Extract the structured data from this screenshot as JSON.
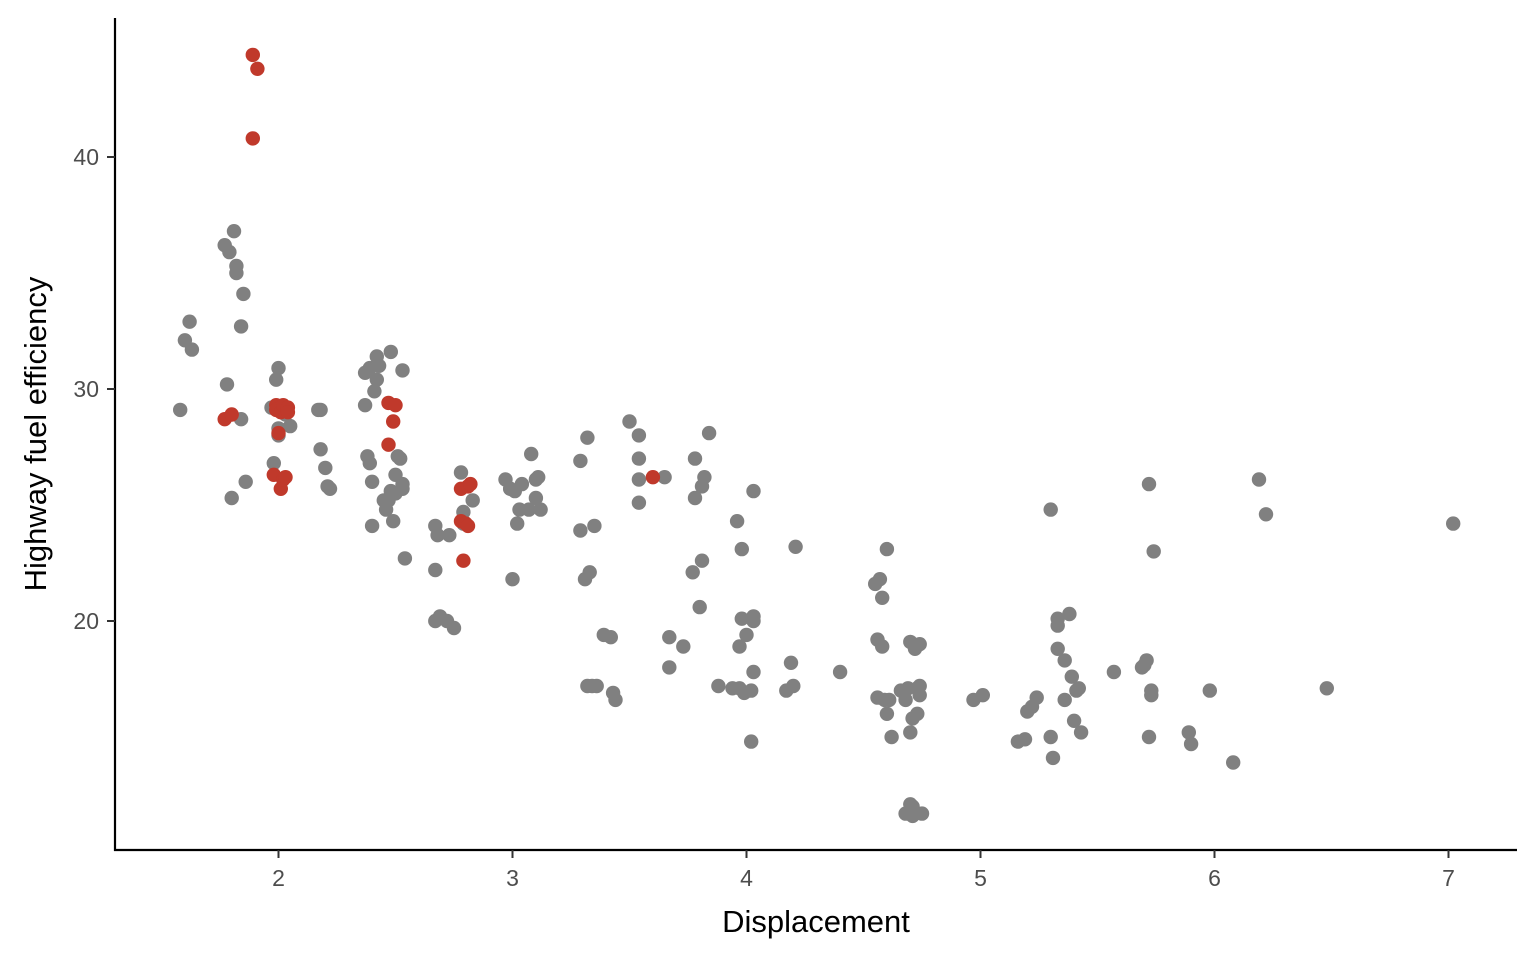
{
  "chart_data": {
    "type": "scatter",
    "title": "",
    "xlabel": "Displacement",
    "ylabel": "Highway fuel efficiency",
    "xlim": [
      1.3,
      7.3
    ],
    "ylim": [
      10,
      46
    ],
    "x_ticks": [
      2,
      3,
      4,
      5,
      6,
      7
    ],
    "y_ticks": [
      20,
      30,
      40
    ],
    "x_tick_labels": [
      "2",
      "3",
      "4",
      "5",
      "6",
      "7"
    ],
    "y_tick_labels": [
      "20",
      "30",
      "40"
    ],
    "grid": false,
    "legend": "none",
    "colors": {
      "default": "#808080",
      "highlight": "#C0392B"
    },
    "series": [
      {
        "color": "#808080",
        "points": [
          [
            1.58,
            29.1
          ],
          [
            1.6,
            32.1
          ],
          [
            1.62,
            32.9
          ],
          [
            1.63,
            31.7
          ],
          [
            1.77,
            36.2
          ],
          [
            1.78,
            30.2
          ],
          [
            1.79,
            35.9
          ],
          [
            1.8,
            25.3
          ],
          [
            1.81,
            36.8
          ],
          [
            1.82,
            35.3
          ],
          [
            1.82,
            35.0
          ],
          [
            1.84,
            32.7
          ],
          [
            1.84,
            28.7
          ],
          [
            1.85,
            34.1
          ],
          [
            1.86,
            26.0
          ],
          [
            1.97,
            29.2
          ],
          [
            1.98,
            26.8
          ],
          [
            1.99,
            30.4
          ],
          [
            2.0,
            28.0
          ],
          [
            2.0,
            30.9
          ],
          [
            2.0,
            28.3
          ],
          [
            2.03,
            28.9
          ],
          [
            2.05,
            28.4
          ],
          [
            2.17,
            29.1
          ],
          [
            2.18,
            29.1
          ],
          [
            2.18,
            27.4
          ],
          [
            2.2,
            26.6
          ],
          [
            2.21,
            25.8
          ],
          [
            2.22,
            25.7
          ],
          [
            2.37,
            29.3
          ],
          [
            2.37,
            30.7
          ],
          [
            2.38,
            27.1
          ],
          [
            2.39,
            26.8
          ],
          [
            2.39,
            30.9
          ],
          [
            2.4,
            24.1
          ],
          [
            2.4,
            26.0
          ],
          [
            2.41,
            29.9
          ],
          [
            2.42,
            31.4
          ],
          [
            2.42,
            30.4
          ],
          [
            2.43,
            31.0
          ],
          [
            2.45,
            25.2
          ],
          [
            2.46,
            24.8
          ],
          [
            2.47,
            25.2
          ],
          [
            2.48,
            25.6
          ],
          [
            2.48,
            31.6
          ],
          [
            2.49,
            24.3
          ],
          [
            2.5,
            25.5
          ],
          [
            2.5,
            26.3
          ],
          [
            2.51,
            27.1
          ],
          [
            2.52,
            27.0
          ],
          [
            2.53,
            25.7
          ],
          [
            2.53,
            25.9
          ],
          [
            2.53,
            30.8
          ],
          [
            2.54,
            22.7
          ],
          [
            2.67,
            24.1
          ],
          [
            2.67,
            20.0
          ],
          [
            2.67,
            22.2
          ],
          [
            2.68,
            23.7
          ],
          [
            2.69,
            20.2
          ],
          [
            2.72,
            20.0
          ],
          [
            2.73,
            23.7
          ],
          [
            2.75,
            19.7
          ],
          [
            2.78,
            26.4
          ],
          [
            2.79,
            24.7
          ],
          [
            2.79,
            24.2
          ],
          [
            2.83,
            25.2
          ],
          [
            2.97,
            26.1
          ],
          [
            2.99,
            25.7
          ],
          [
            2.99,
            25.7
          ],
          [
            3.0,
            21.8
          ],
          [
            3.01,
            25.6
          ],
          [
            3.02,
            24.2
          ],
          [
            3.03,
            24.8
          ],
          [
            3.04,
            25.9
          ],
          [
            3.07,
            24.8
          ],
          [
            3.08,
            27.2
          ],
          [
            3.1,
            25.3
          ],
          [
            3.1,
            26.1
          ],
          [
            3.11,
            26.2
          ],
          [
            3.12,
            24.8
          ],
          [
            3.29,
            26.9
          ],
          [
            3.29,
            23.9
          ],
          [
            3.31,
            21.8
          ],
          [
            3.32,
            27.9
          ],
          [
            3.32,
            17.2
          ],
          [
            3.33,
            22.1
          ],
          [
            3.34,
            17.2
          ],
          [
            3.35,
            24.1
          ],
          [
            3.36,
            17.2
          ],
          [
            3.39,
            19.4
          ],
          [
            3.42,
            19.3
          ],
          [
            3.43,
            16.9
          ],
          [
            3.44,
            16.6
          ],
          [
            3.5,
            28.6
          ],
          [
            3.54,
            28.0
          ],
          [
            3.54,
            26.1
          ],
          [
            3.54,
            27.0
          ],
          [
            3.54,
            25.1
          ],
          [
            3.65,
            26.2
          ],
          [
            3.67,
            19.3
          ],
          [
            3.67,
            18.0
          ],
          [
            3.73,
            18.9
          ],
          [
            3.77,
            22.1
          ],
          [
            3.78,
            25.3
          ],
          [
            3.78,
            27.0
          ],
          [
            3.8,
            20.6
          ],
          [
            3.81,
            22.6
          ],
          [
            3.81,
            25.8
          ],
          [
            3.82,
            26.2
          ],
          [
            3.84,
            28.1
          ],
          [
            3.88,
            17.2
          ],
          [
            3.94,
            17.1
          ],
          [
            3.96,
            24.3
          ],
          [
            3.97,
            18.9
          ],
          [
            3.97,
            17.1
          ],
          [
            3.98,
            20.1
          ],
          [
            3.98,
            23.1
          ],
          [
            3.99,
            16.9
          ],
          [
            4.0,
            19.4
          ],
          [
            4.02,
            17.0
          ],
          [
            4.02,
            14.8
          ],
          [
            4.03,
            20.0
          ],
          [
            4.03,
            17.8
          ],
          [
            4.03,
            20.2
          ],
          [
            4.03,
            25.6
          ],
          [
            4.17,
            17.0
          ],
          [
            4.19,
            18.2
          ],
          [
            4.2,
            17.2
          ],
          [
            4.21,
            23.2
          ],
          [
            4.4,
            17.8
          ],
          [
            4.55,
            21.6
          ],
          [
            4.56,
            19.2
          ],
          [
            4.56,
            16.7
          ],
          [
            4.57,
            21.8
          ],
          [
            4.58,
            21.0
          ],
          [
            4.58,
            18.9
          ],
          [
            4.59,
            16.6
          ],
          [
            4.6,
            23.1
          ],
          [
            4.6,
            16.0
          ],
          [
            4.61,
            16.6
          ],
          [
            4.62,
            15.0
          ],
          [
            4.66,
            17.0
          ],
          [
            4.68,
            16.6
          ],
          [
            4.68,
            11.7
          ],
          [
            4.69,
            17.1
          ],
          [
            4.7,
            19.1
          ],
          [
            4.7,
            15.2
          ],
          [
            4.7,
            12.1
          ],
          [
            4.71,
            12.0
          ],
          [
            4.71,
            15.8
          ],
          [
            4.71,
            11.6
          ],
          [
            4.72,
            18.8
          ],
          [
            4.73,
            16.0
          ],
          [
            4.73,
            17.1
          ],
          [
            4.74,
            19.0
          ],
          [
            4.74,
            16.8
          ],
          [
            4.74,
            17.2
          ],
          [
            4.75,
            11.7
          ],
          [
            4.97,
            16.6
          ],
          [
            5.01,
            16.8
          ],
          [
            5.16,
            14.8
          ],
          [
            5.19,
            14.9
          ],
          [
            5.2,
            16.1
          ],
          [
            5.22,
            16.3
          ],
          [
            5.24,
            16.7
          ],
          [
            5.3,
            24.8
          ],
          [
            5.3,
            15.0
          ],
          [
            5.31,
            14.1
          ],
          [
            5.33,
            20.1
          ],
          [
            5.33,
            19.8
          ],
          [
            5.33,
            18.8
          ],
          [
            5.36,
            18.3
          ],
          [
            5.36,
            16.6
          ],
          [
            5.38,
            20.3
          ],
          [
            5.39,
            17.6
          ],
          [
            5.4,
            15.7
          ],
          [
            5.41,
            17.0
          ],
          [
            5.42,
            17.1
          ],
          [
            5.43,
            15.2
          ],
          [
            5.57,
            17.8
          ],
          [
            5.69,
            18.0
          ],
          [
            5.7,
            18.1
          ],
          [
            5.71,
            18.3
          ],
          [
            5.72,
            15.0
          ],
          [
            5.72,
            25.9
          ],
          [
            5.73,
            17.0
          ],
          [
            5.73,
            16.8
          ],
          [
            5.74,
            23.0
          ],
          [
            5.89,
            15.2
          ],
          [
            5.9,
            14.7
          ],
          [
            5.98,
            17.0
          ],
          [
            6.08,
            13.9
          ],
          [
            6.19,
            26.1
          ],
          [
            6.22,
            24.6
          ],
          [
            6.48,
            17.1
          ],
          [
            7.02,
            24.2
          ]
        ]
      },
      {
        "color": "#C0392B",
        "points": [
          [
            1.89,
            44.4
          ],
          [
            1.91,
            43.8
          ],
          [
            1.89,
            40.8
          ],
          [
            1.77,
            28.7
          ],
          [
            1.8,
            28.9
          ],
          [
            1.98,
            26.3
          ],
          [
            1.99,
            29.3
          ],
          [
            1.99,
            29.1
          ],
          [
            2.0,
            28.1
          ],
          [
            2.01,
            29.0
          ],
          [
            2.01,
            25.7
          ],
          [
            2.02,
            26.1
          ],
          [
            2.02,
            29.3
          ],
          [
            2.03,
            26.2
          ],
          [
            2.04,
            29.2
          ],
          [
            2.04,
            29.0
          ],
          [
            2.47,
            29.4
          ],
          [
            2.47,
            27.6
          ],
          [
            2.49,
            28.6
          ],
          [
            2.5,
            29.3
          ],
          [
            2.78,
            25.7
          ],
          [
            2.78,
            24.3
          ],
          [
            2.79,
            22.6
          ],
          [
            2.8,
            24.2
          ],
          [
            2.81,
            24.1
          ],
          [
            2.81,
            25.8
          ],
          [
            2.82,
            25.9
          ],
          [
            3.6,
            26.2
          ]
        ]
      }
    ]
  }
}
